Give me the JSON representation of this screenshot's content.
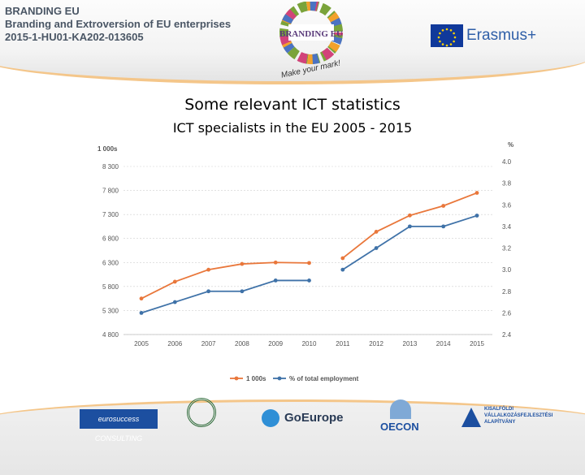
{
  "header": {
    "project_name": "BRANDING EU",
    "project_subtitle": "Branding and Extroversion of EU enterprises",
    "project_code": "2015-1-HU01-KA202-013605",
    "logo_text": "BRANDING EU",
    "logo_slogan": "Make your mark!",
    "erasmus_text": "Erasmus+"
  },
  "page": {
    "title": "Some relevant ICT statistics",
    "subtitle": "ICT specialists in the EU 2005 - 2015"
  },
  "chart_data": {
    "type": "line",
    "categories": [
      "2005",
      "2006",
      "2007",
      "2008",
      "2009",
      "2010",
      "2011",
      "2012",
      "2013",
      "2014",
      "2015"
    ],
    "y_left_label": "1 000s",
    "y_right_label": "%",
    "y_left_ticks": [
      "4 800",
      "5 300",
      "5 800",
      "6 300",
      "6 800",
      "7 300",
      "7 800",
      "8 300"
    ],
    "y_right_ticks": [
      "2.4",
      "2.6",
      "2.8",
      "3.0",
      "3.2",
      "3.4",
      "3.6",
      "3.8",
      "4.0"
    ],
    "y_left_range": [
      4800,
      8300
    ],
    "y_right_range": [
      2.4,
      4.0
    ],
    "grid": true,
    "legend_position": "bottom",
    "series": [
      {
        "name": "1 000s",
        "axis": "left",
        "color": "#e9773b",
        "values": [
          5550,
          5900,
          6150,
          6270,
          6300,
          6290,
          6390,
          6940,
          7280,
          7480,
          7750
        ],
        "break_after_index": 5
      },
      {
        "name": "% of total employment",
        "axis": "right",
        "color": "#3f72a8",
        "values": [
          2.6,
          2.7,
          2.8,
          2.8,
          2.9,
          2.9,
          3.0,
          3.2,
          3.4,
          3.4,
          3.5
        ],
        "break_after_index": 5
      }
    ]
  },
  "footer": {
    "logos": [
      "eurosuccess CONSULTING",
      "",
      "GoEurope",
      "OECON",
      "KISALFÖLDI VÁLLALKOZÁSFEJLESZTÉSI ALAPÍTVÁNY"
    ]
  },
  "colors": {
    "header_text": "#4a5665",
    "accent_orange": "#f4c68a",
    "erasmus_blue": "#10399a"
  }
}
